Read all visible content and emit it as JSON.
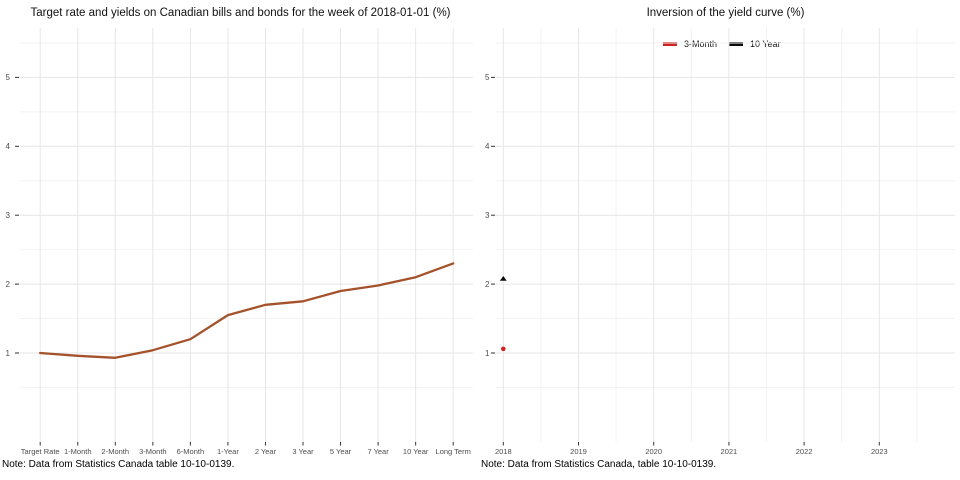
{
  "chart_data": [
    {
      "type": "line",
      "title": "Target rate and yields on Canadian bills and bonds for the week of 2018-01-01 (%)",
      "note": "Note: Data from Statistics Canada table 10-10-0139.",
      "categories": [
        "Target Rate",
        "1-Month",
        "2-Month",
        "3-Month",
        "6-Month",
        "1-Year",
        "2 Year",
        "3 Year",
        "5 Year",
        "7 Year",
        "10 Year",
        "Long Term"
      ],
      "values": [
        1.0,
        0.96,
        0.93,
        1.04,
        1.2,
        1.55,
        1.7,
        1.75,
        1.9,
        1.98,
        2.1,
        2.3
      ],
      "line_color": "#A5522B",
      "xlabel": "",
      "ylabel": "",
      "y_ticks": [
        "1",
        "2",
        "3",
        "4",
        "5"
      ],
      "ylim": [
        -0.3,
        5.7
      ],
      "grid": "major and minor horizontal + vertical light-gray gridlines on white"
    },
    {
      "type": "scatter",
      "title": "Inversion of the yield curve (%)",
      "note": "Note: Data from Statistics Canada, table 10-10-0139.",
      "x_ticks": [
        "2018",
        "2019",
        "2020",
        "2021",
        "2022",
        "2023"
      ],
      "xlim": [
        2017.9,
        2024.0
      ],
      "y_ticks": [
        "1",
        "2",
        "3",
        "4",
        "5"
      ],
      "ylim": [
        -0.3,
        5.7
      ],
      "legend_position": "top-center",
      "series": [
        {
          "name": "3-Month",
          "color": "#CC2222",
          "marker": "circle",
          "points": [
            {
              "x": 2018.0,
              "y": 1.06
            }
          ]
        },
        {
          "name": "10 Year",
          "color": "#0A0A0A",
          "marker": "triangle",
          "points": [
            {
              "x": 2018.0,
              "y": 2.08
            }
          ]
        }
      ],
      "grid": "major and minor horizontal + half-year vertical light-gray gridlines on white"
    }
  ],
  "colors": {
    "background": "#FFFFFF",
    "grid_major": "#E6E6E6",
    "grid_minor": "#F2F2F2",
    "tick_mark": "#333333",
    "tick_label": "#4D4D4D",
    "yield_line": "#A5522B",
    "series_3_month": "#CC2222",
    "series_10_year": "#0A0A0A"
  }
}
